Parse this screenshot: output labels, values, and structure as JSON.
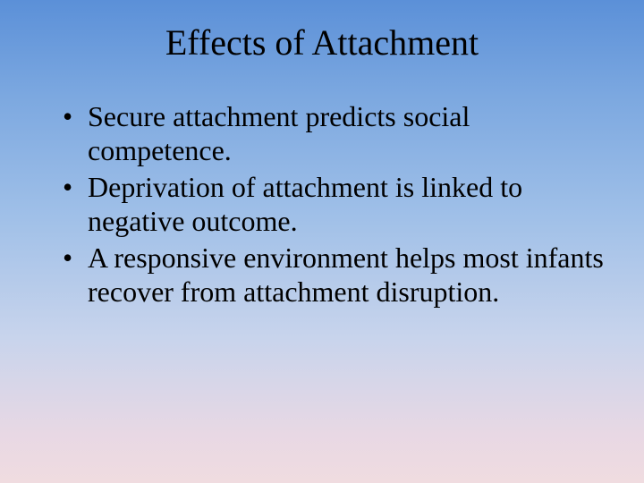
{
  "slide": {
    "title": "Effects of Attachment",
    "bullets": [
      "Secure attachment predicts social competence.",
      "Deprivation of attachment is linked to negative outcome.",
      "A responsive environment helps most infants recover from attachment disruption."
    ],
    "style": {
      "background_gradient_colors": [
        "#5b90d8",
        "#7ca8e0",
        "#a0c0e8",
        "#c8d4ec",
        "#e8d8e4",
        "#f0dce0"
      ],
      "title_font_size_pt": 40,
      "body_font_size_pt": 32,
      "font_family": "Times New Roman",
      "text_color": "#000000",
      "bullet_char": "•"
    }
  }
}
